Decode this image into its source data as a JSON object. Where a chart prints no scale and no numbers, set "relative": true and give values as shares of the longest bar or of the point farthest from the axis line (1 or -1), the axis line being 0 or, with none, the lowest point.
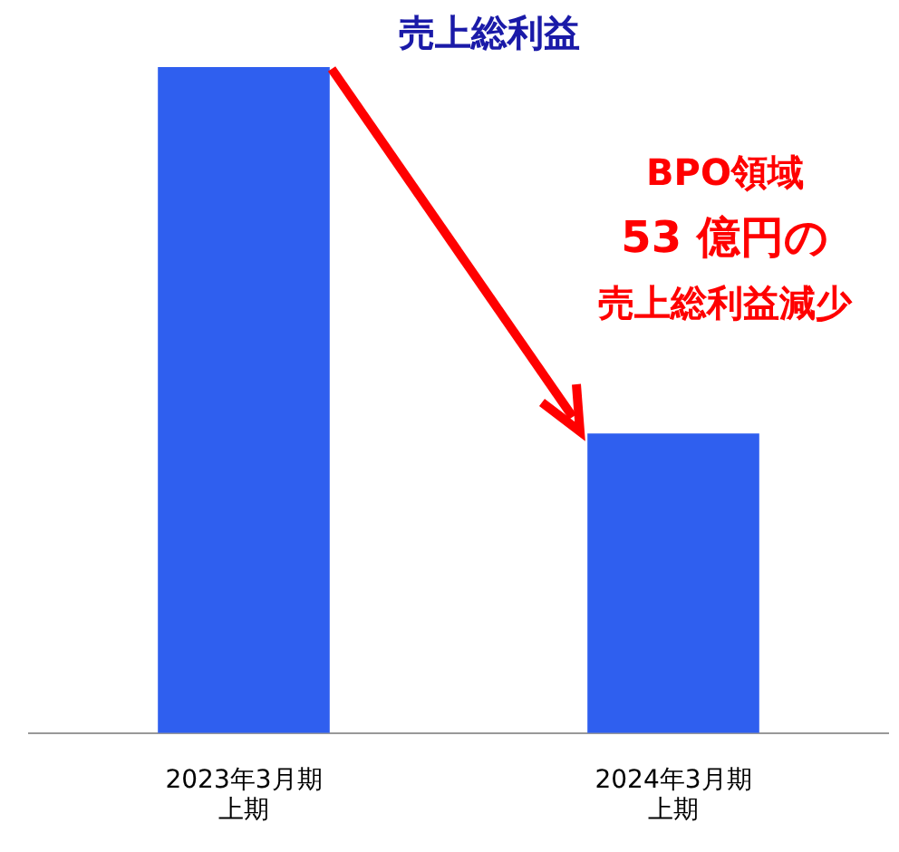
{
  "chart_data": {
    "type": "bar",
    "title": "売上総利益",
    "categories": [
      "2023年3月期上期",
      "2024年3月期上期"
    ],
    "values": [
      1,
      0.45
    ],
    "color": "#2f5fef",
    "relative": true,
    "grid": false,
    "legend": false,
    "annotations": [
      "BPO領域",
      "53 億円の",
      "売上総利益減少"
    ]
  }
}
